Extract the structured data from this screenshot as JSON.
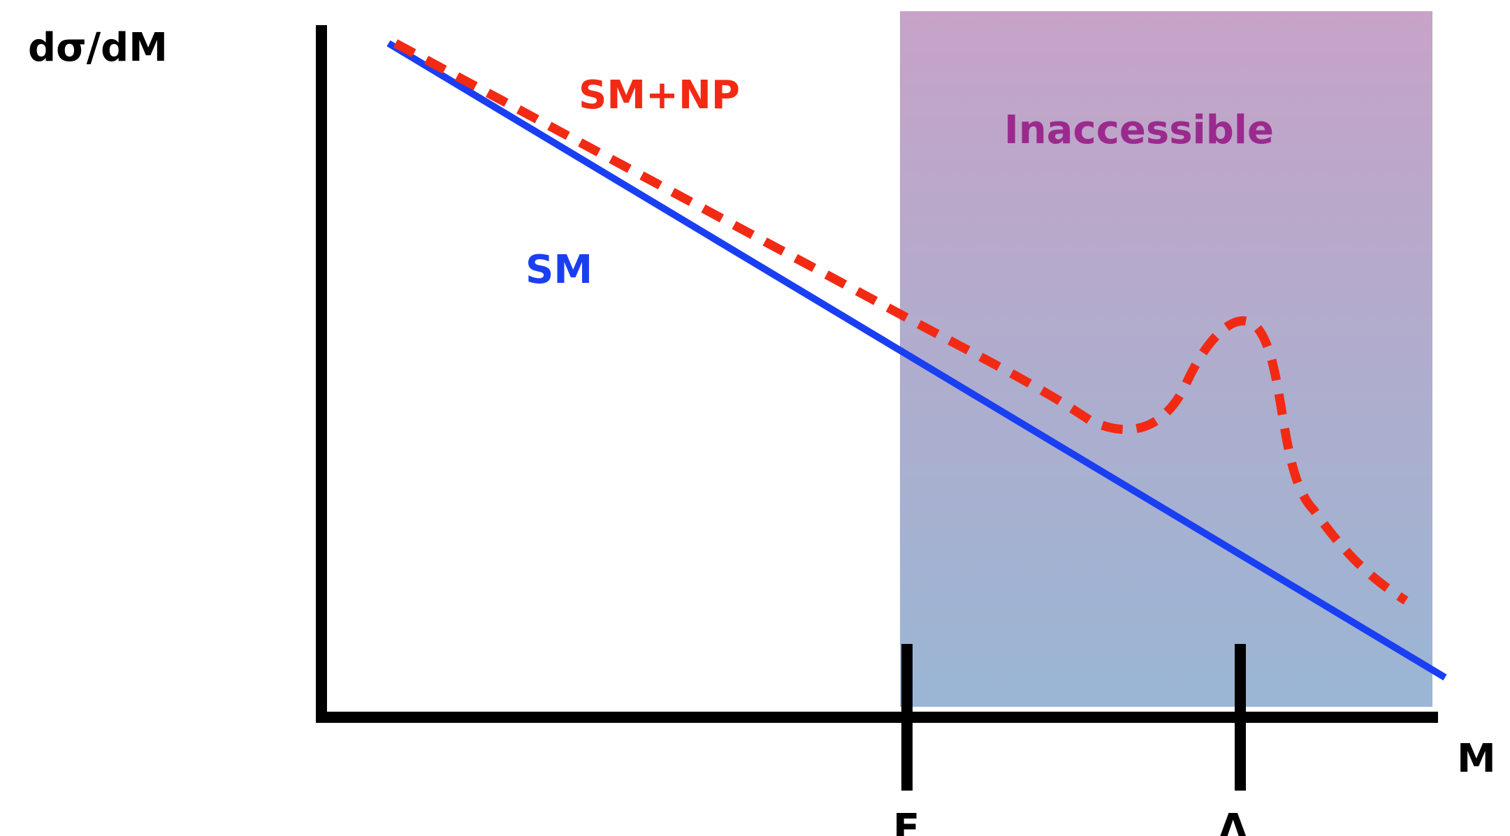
{
  "y_axis_label": "dσ/dM",
  "x_axis_label": "M",
  "ticks": {
    "e_label": "E",
    "lambda_label": "Λ"
  },
  "region": {
    "label": "Inaccessible",
    "label_color": "#9b2a8e",
    "top_color": "#c6a3c7",
    "bottom_color": "#9ab6d4"
  },
  "curves": {
    "sm": {
      "label": "SM",
      "color": "#1a3ff2",
      "style": "solid"
    },
    "sm_np": {
      "label": "SM+NP",
      "color": "#f22a14",
      "style": "dashed"
    }
  }
}
